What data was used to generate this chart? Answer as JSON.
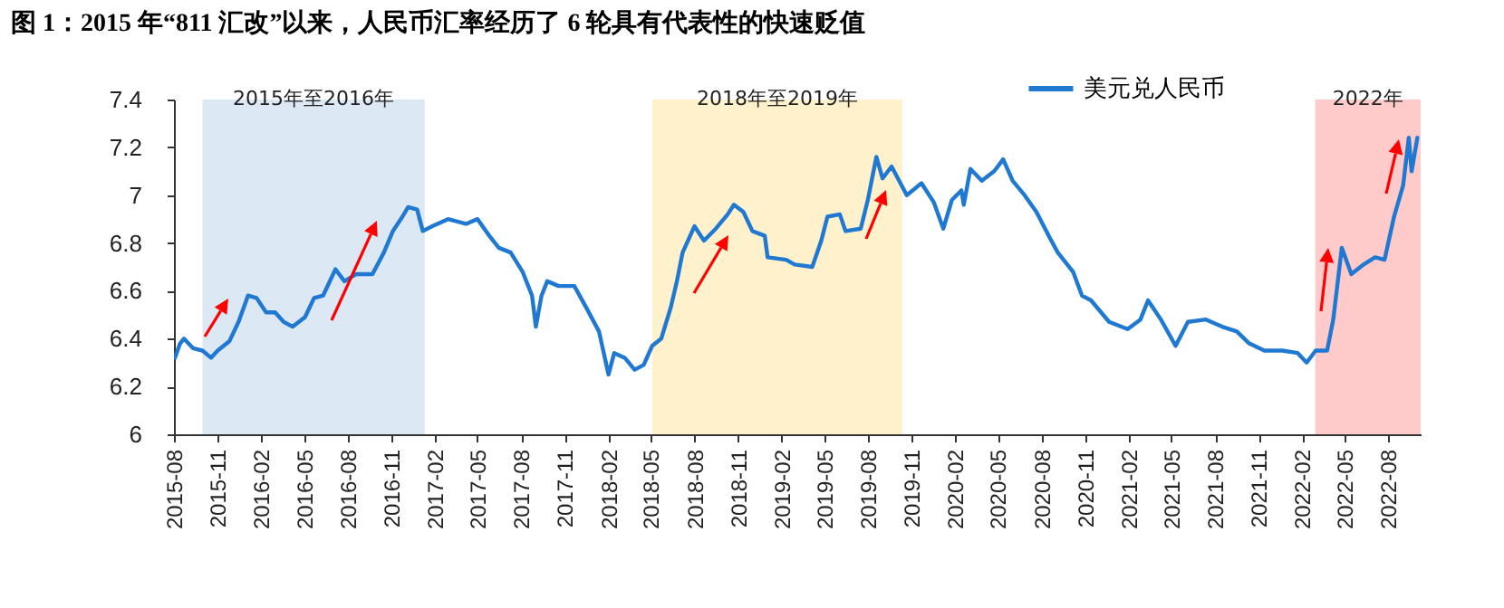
{
  "chart_data": {
    "type": "line",
    "title": "图 1：2015 年“811 汇改”以来，人民币汇率经历了 6 轮具有代表性的快速贬值",
    "x": [
      "2015-08-03",
      "2015-08-14",
      "2015-08-22",
      "2015-09-10",
      "2015-09-30",
      "2015-10-18",
      "2015-11-01",
      "2015-11-26",
      "2015-12-15",
      "2016-01-04",
      "2016-01-22",
      "2016-02-11",
      "2016-03-01",
      "2016-03-19",
      "2016-04-07",
      "2016-05-03",
      "2016-05-22",
      "2016-06-10",
      "2016-07-06",
      "2016-07-25",
      "2016-08-19",
      "2016-09-22",
      "2016-10-16",
      "2016-11-04",
      "2016-11-24",
      "2016-12-06",
      "2016-12-25",
      "2017-01-06",
      "2017-01-26",
      "2017-02-28",
      "2017-04-07",
      "2017-05-01",
      "2017-05-26",
      "2017-06-15",
      "2017-07-10",
      "2017-08-04",
      "2017-08-24",
      "2017-09-01",
      "2017-09-13",
      "2017-09-25",
      "2017-10-19",
      "2017-11-21",
      "2017-12-16",
      "2018-01-12",
      "2018-02-01",
      "2018-02-13",
      "2018-03-07",
      "2018-03-28",
      "2018-04-16",
      "2018-05-04",
      "2018-05-23",
      "2018-06-12",
      "2018-06-25",
      "2018-07-07",
      "2018-08-01",
      "2018-08-21",
      "2018-09-15",
      "2018-10-10",
      "2018-10-23",
      "2018-11-12",
      "2018-12-01",
      "2018-12-27",
      "2019-01-02",
      "2019-02-10",
      "2019-02-28",
      "2019-04-06",
      "2019-04-25",
      "2019-05-08",
      "2019-06-03",
      "2019-06-15",
      "2019-07-17",
      "2019-08-01",
      "2019-08-19",
      "2019-09-01",
      "2019-09-20",
      "2019-10-22",
      "2019-11-22",
      "2019-12-18",
      "2020-01-07",
      "2020-01-25",
      "2020-02-14",
      "2020-02-19",
      "2020-03-04",
      "2020-03-28",
      "2020-04-23",
      "2020-05-12",
      "2020-06-01",
      "2020-06-26",
      "2020-07-21",
      "2020-08-16",
      "2020-09-04",
      "2020-10-06",
      "2020-10-25",
      "2020-11-13",
      "2020-12-21",
      "2021-01-29",
      "2021-02-25",
      "2021-03-13",
      "2021-04-09",
      "2021-05-10",
      "2021-06-05",
      "2021-07-13",
      "2021-08-16",
      "2021-09-16",
      "2021-10-12",
      "2021-11-13",
      "2021-12-21",
      "2022-01-22",
      "2022-02-10",
      "2022-03-01",
      "2022-03-25",
      "2022-04-07",
      "2022-04-25",
      "2022-05-15",
      "2022-06-10",
      "2022-07-04",
      "2022-07-24",
      "2022-08-13",
      "2022-09-01",
      "2022-09-13",
      "2022-09-19",
      "2022-10-01"
    ],
    "series": [
      {
        "name": "美元兑人民币",
        "color": "#1f78d1",
        "values": [
          6.32,
          6.38,
          6.4,
          6.36,
          6.35,
          6.32,
          6.35,
          6.39,
          6.47,
          6.58,
          6.57,
          6.51,
          6.51,
          6.47,
          6.45,
          6.49,
          6.57,
          6.58,
          6.69,
          6.64,
          6.67,
          6.67,
          6.76,
          6.85,
          6.91,
          6.95,
          6.94,
          6.85,
          6.87,
          6.9,
          6.88,
          6.9,
          6.83,
          6.78,
          6.76,
          6.68,
          6.58,
          6.45,
          6.58,
          6.64,
          6.62,
          6.62,
          6.53,
          6.43,
          6.25,
          6.34,
          6.32,
          6.27,
          6.29,
          6.37,
          6.4,
          6.53,
          6.64,
          6.76,
          6.87,
          6.81,
          6.86,
          6.92,
          6.96,
          6.93,
          6.85,
          6.83,
          6.74,
          6.73,
          6.71,
          6.7,
          6.81,
          6.91,
          6.92,
          6.85,
          6.86,
          6.98,
          7.16,
          7.07,
          7.12,
          7.0,
          7.05,
          6.97,
          6.86,
          6.98,
          7.02,
          6.96,
          7.11,
          7.06,
          7.1,
          7.15,
          7.06,
          7.0,
          6.93,
          6.83,
          6.76,
          6.68,
          6.58,
          6.56,
          6.47,
          6.44,
          6.48,
          6.56,
          6.48,
          6.37,
          6.47,
          6.48,
          6.45,
          6.43,
          6.38,
          6.35,
          6.35,
          6.34,
          6.3,
          6.35,
          6.35,
          6.48,
          6.78,
          6.67,
          6.71,
          6.74,
          6.73,
          6.91,
          7.04,
          7.24,
          7.1,
          7.24
        ]
      }
    ],
    "xlim": [
      "2015-08-01",
      "2022-10-08"
    ],
    "xticks": [
      "2015-08",
      "2015-11",
      "2016-02",
      "2016-05",
      "2016-08",
      "2016-11",
      "2017-02",
      "2017-05",
      "2017-08",
      "2017-11",
      "2018-02",
      "2018-05",
      "2018-08",
      "2018-11",
      "2019-02",
      "2019-05",
      "2019-08",
      "2019-11",
      "2020-02",
      "2020-05",
      "2020-08",
      "2020-11",
      "2021-02",
      "2021-05",
      "2021-08",
      "2021-11",
      "2022-02",
      "2022-05",
      "2022-08"
    ],
    "ylim": [
      6,
      7.4
    ],
    "yticks": [
      6,
      6.2,
      6.4,
      6.6,
      6.8,
      7,
      7.2,
      7.4
    ],
    "bands": [
      {
        "axis": "x",
        "from": "2015-09-30",
        "to": "2017-01-10",
        "label": "2015年至2016年",
        "color": "#dde8f5"
      },
      {
        "axis": "x",
        "from": "2018-05-04",
        "to": "2019-10-13",
        "label": "2018年至2019年",
        "color": "#fff1cc"
      },
      {
        "axis": "x",
        "from": "2022-02-28",
        "to": "2022-10-08",
        "label": "2022年",
        "color": "#ffcaca"
      }
    ],
    "legend": "top right",
    "grid": false,
    "marker": "none",
    "line_style": "solid"
  }
}
